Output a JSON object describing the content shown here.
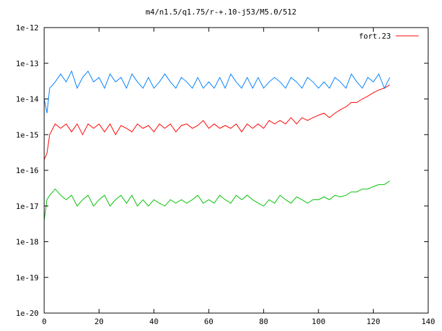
{
  "chart_data": {
    "type": "line",
    "title": "m4/n1.5/q1.75/r-+.10-j53/M5.0/512",
    "xlabel": "",
    "ylabel": "",
    "xlim": [
      0,
      140
    ],
    "ylim": [
      1e-20,
      1e-12
    ],
    "yscale": "log",
    "grid": false,
    "legend_position": "top-right",
    "x_ticks": [
      "0",
      "20",
      "40",
      "60",
      "80",
      "100",
      "120",
      "140"
    ],
    "y_ticks": [
      "1e-12",
      "1e-13",
      "1e-14",
      "1e-15",
      "1e-16",
      "1e-17",
      "1e-18",
      "1e-19",
      "1e-20"
    ],
    "series": [
      {
        "name": "fort.23",
        "color": "#ff0000",
        "x": [
          0,
          1,
          2,
          4,
          6,
          8,
          10,
          12,
          14,
          16,
          18,
          20,
          22,
          24,
          26,
          28,
          30,
          32,
          34,
          36,
          38,
          40,
          42,
          44,
          46,
          48,
          50,
          52,
          54,
          56,
          58,
          60,
          62,
          64,
          66,
          68,
          70,
          72,
          74,
          76,
          78,
          80,
          82,
          84,
          86,
          88,
          90,
          92,
          94,
          96,
          98,
          100,
          102,
          104,
          106,
          108,
          110,
          112,
          114,
          116,
          118,
          120,
          122,
          124,
          126
        ],
        "y": [
          2e-16,
          3e-16,
          1e-15,
          2e-15,
          1.5e-15,
          2e-15,
          1.2e-15,
          2e-15,
          1e-15,
          2e-15,
          1.5e-15,
          2e-15,
          1.2e-15,
          2e-15,
          1e-15,
          1.8e-15,
          1.5e-15,
          1.2e-15,
          2e-15,
          1.5e-15,
          1.8e-15,
          1.2e-15,
          2e-15,
          1.5e-15,
          2e-15,
          1.2e-15,
          1.8e-15,
          2e-15,
          1.5e-15,
          1.8e-15,
          2.5e-15,
          1.5e-15,
          2e-15,
          1.5e-15,
          1.8e-15,
          1.5e-15,
          2e-15,
          1.2e-15,
          2e-15,
          1.5e-15,
          2e-15,
          1.5e-15,
          2.5e-15,
          2e-15,
          2.5e-15,
          2e-15,
          3e-15,
          2e-15,
          3e-15,
          2.5e-15,
          3e-15,
          3.5e-15,
          4e-15,
          3e-15,
          4e-15,
          5e-15,
          6e-15,
          8e-15,
          8e-15,
          1e-14,
          1.2e-14,
          1.5e-14,
          1.8e-14,
          2e-14,
          2.5e-14
        ]
      },
      {
        "name": "",
        "color": "#0080ff",
        "x": [
          0,
          1,
          2,
          4,
          6,
          8,
          10,
          12,
          14,
          16,
          18,
          20,
          22,
          24,
          26,
          28,
          30,
          32,
          34,
          36,
          38,
          40,
          42,
          44,
          46,
          48,
          50,
          52,
          54,
          56,
          58,
          60,
          62,
          64,
          66,
          68,
          70,
          72,
          74,
          76,
          78,
          80,
          82,
          84,
          86,
          88,
          90,
          92,
          94,
          96,
          98,
          100,
          102,
          104,
          106,
          108,
          110,
          112,
          114,
          116,
          118,
          120,
          122,
          124,
          126
        ],
        "y": [
          1e-14,
          4e-15,
          2e-14,
          3e-14,
          5e-14,
          3e-14,
          6e-14,
          2e-14,
          4e-14,
          6e-14,
          3e-14,
          4e-14,
          2e-14,
          5e-14,
          3e-14,
          4e-14,
          2e-14,
          5e-14,
          3e-14,
          2e-14,
          4e-14,
          2e-14,
          3e-14,
          5e-14,
          3e-14,
          2e-14,
          4e-14,
          3e-14,
          2e-14,
          4e-14,
          2e-14,
          3e-14,
          2e-14,
          4e-14,
          2e-14,
          5e-14,
          3e-14,
          2e-14,
          4e-14,
          2e-14,
          4e-14,
          2e-14,
          3e-14,
          4e-14,
          3e-14,
          2e-14,
          4e-14,
          3e-14,
          2e-14,
          4e-14,
          3e-14,
          2e-14,
          3e-14,
          2e-14,
          4e-14,
          3e-14,
          2e-14,
          5e-14,
          3e-14,
          2e-14,
          4e-14,
          3e-14,
          5e-14,
          2e-14,
          4e-14
        ]
      },
      {
        "name": "",
        "color": "#00c000",
        "x": [
          0,
          1,
          2,
          4,
          6,
          8,
          10,
          12,
          14,
          16,
          18,
          20,
          22,
          24,
          26,
          28,
          30,
          32,
          34,
          36,
          38,
          40,
          42,
          44,
          46,
          48,
          50,
          52,
          54,
          56,
          58,
          60,
          62,
          64,
          66,
          68,
          70,
          72,
          74,
          76,
          78,
          80,
          82,
          84,
          86,
          88,
          90,
          92,
          94,
          96,
          98,
          100,
          102,
          104,
          106,
          108,
          110,
          112,
          114,
          116,
          118,
          120,
          122,
          124,
          126
        ],
        "y": [
          4e-18,
          1.5e-17,
          2e-17,
          3e-17,
          2e-17,
          1.5e-17,
          2e-17,
          1e-17,
          1.5e-17,
          2e-17,
          1e-17,
          1.5e-17,
          2e-17,
          1e-17,
          1.5e-17,
          2e-17,
          1.2e-17,
          2e-17,
          1e-17,
          1.5e-17,
          1e-17,
          1.5e-17,
          1.2e-17,
          1e-17,
          1.5e-17,
          1.2e-17,
          1.5e-17,
          1.2e-17,
          1.5e-17,
          2e-17,
          1.2e-17,
          1.5e-17,
          1.2e-17,
          2e-17,
          1.5e-17,
          1.2e-17,
          2e-17,
          1.5e-17,
          2e-17,
          1.5e-17,
          1.2e-17,
          1e-17,
          1.5e-17,
          1.2e-17,
          2e-17,
          1.5e-17,
          1.2e-17,
          1.8e-17,
          1.5e-17,
          1.2e-17,
          1.5e-17,
          1.5e-17,
          1.8e-17,
          1.5e-17,
          2e-17,
          1.8e-17,
          2e-17,
          2.5e-17,
          2.5e-17,
          3e-17,
          3e-17,
          3.5e-17,
          4e-17,
          4e-17,
          5e-17
        ]
      }
    ]
  }
}
